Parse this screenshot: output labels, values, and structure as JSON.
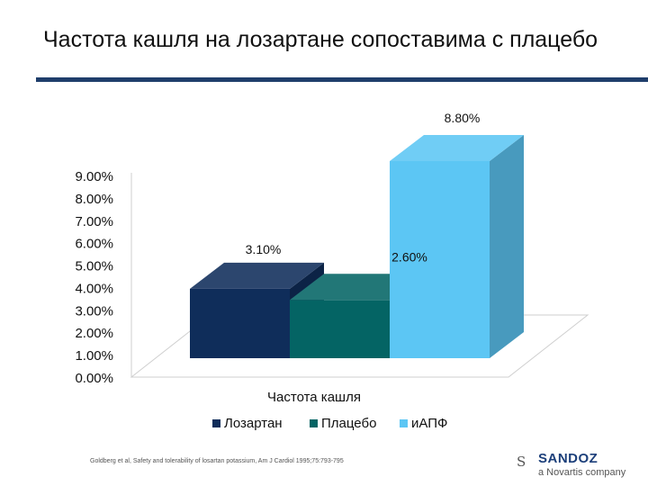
{
  "slide": {
    "title": "Частота кашля на лозартане сопоставима с плацебо",
    "footnote": "Goldberg et al, Safety and tolerability of losartan potassium, Am J Cardiol 1995;75:793-795"
  },
  "logo": {
    "mark": "S",
    "name": "SANDOZ",
    "tagline": "a Novartis company"
  },
  "chart_data": {
    "type": "bar",
    "categories": [
      "Частота кашля"
    ],
    "series": [
      {
        "name": "Лозартан",
        "values": [
          3.1
        ],
        "label": "3.10%",
        "color": "#0f2d5a"
      },
      {
        "name": "Плацебо",
        "values": [
          2.6
        ],
        "label": "2.60%",
        "color": "#046464"
      },
      {
        "name": "иАПФ",
        "values": [
          8.8
        ],
        "label": "8.80%",
        "color": "#5cc6f4"
      }
    ],
    "xlabel": "Частота кашля",
    "ylabel": "",
    "ylim": [
      0,
      9
    ],
    "yticks": [
      "0.00%",
      "1.00%",
      "2.00%",
      "3.00%",
      "4.00%",
      "5.00%",
      "6.00%",
      "7.00%",
      "8.00%",
      "9.00%"
    ],
    "grid": false,
    "legend_position": "bottom",
    "style": "3d"
  }
}
